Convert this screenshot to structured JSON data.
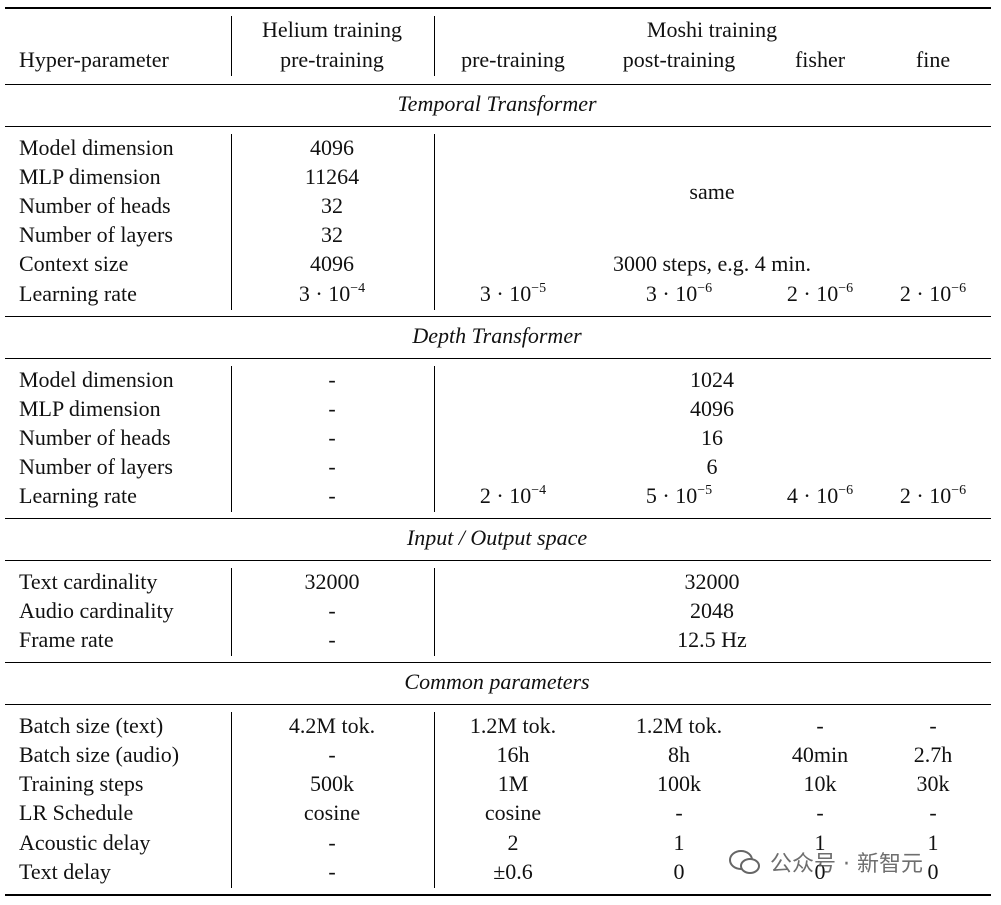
{
  "header": {
    "label": "Hyper-parameter",
    "helium_group": "Helium training",
    "moshi_group": "Moshi training",
    "sub": [
      "pre-training",
      "pre-training",
      "post-training",
      "fisher",
      "fine"
    ]
  },
  "sections": [
    {
      "title": "Temporal Transformer",
      "moshi_merged": "same",
      "rows": [
        {
          "label": "Model dimension",
          "helium": "4096"
        },
        {
          "label": "MLP dimension",
          "helium": "11264"
        },
        {
          "label": "Number of heads",
          "helium": "32"
        },
        {
          "label": "Number of layers",
          "helium": "32"
        },
        {
          "label": "Context size",
          "helium": "4096",
          "moshi": [
            "3000 steps, e.g. 4 min."
          ]
        },
        {
          "label": "Learning rate",
          "helium": {
            "base": "3 · 10",
            "exp": "−4"
          },
          "moshi": [
            {
              "base": "3 · 10",
              "exp": "−5"
            },
            {
              "base": "3 · 10",
              "exp": "−6"
            },
            {
              "base": "2 · 10",
              "exp": "−6"
            },
            {
              "base": "2 · 10",
              "exp": "−6"
            }
          ]
        }
      ]
    },
    {
      "title": "Depth Transformer",
      "rows": [
        {
          "label": "Model dimension",
          "helium": "-",
          "moshi": [
            "1024"
          ]
        },
        {
          "label": "MLP dimension",
          "helium": "-",
          "moshi": [
            "4096"
          ]
        },
        {
          "label": "Number of heads",
          "helium": "-",
          "moshi": [
            "16"
          ]
        },
        {
          "label": "Number of layers",
          "helium": "-",
          "moshi": [
            "6"
          ]
        },
        {
          "label": "Learning rate",
          "helium": "-",
          "moshi": [
            {
              "base": "2 · 10",
              "exp": "−4"
            },
            {
              "base": "5 · 10",
              "exp": "−5"
            },
            {
              "base": "4 · 10",
              "exp": "−6"
            },
            {
              "base": "2 · 10",
              "exp": "−6"
            }
          ]
        }
      ]
    },
    {
      "title": "Input / Output space",
      "rows": [
        {
          "label": "Text cardinality",
          "helium": "32000",
          "moshi": [
            "32000"
          ]
        },
        {
          "label": "Audio cardinality",
          "helium": "-",
          "moshi": [
            "2048"
          ]
        },
        {
          "label": "Frame rate",
          "helium": "-",
          "moshi": [
            "12.5 Hz"
          ]
        }
      ]
    },
    {
      "title": "Common parameters",
      "rows": [
        {
          "label": "Batch size (text)",
          "helium": "4.2M tok.",
          "moshi": [
            "1.2M tok.",
            "1.2M tok.",
            "-",
            "-"
          ]
        },
        {
          "label": "Batch size (audio)",
          "helium": "-",
          "moshi": [
            "16h",
            "8h",
            "40min",
            "2.7h"
          ]
        },
        {
          "label": "Training steps",
          "helium": "500k",
          "moshi": [
            "1M",
            "100k",
            "10k",
            "30k"
          ]
        },
        {
          "label": "LR Schedule",
          "helium": "cosine",
          "moshi": [
            "cosine",
            "-",
            "-",
            "-"
          ]
        },
        {
          "label": "Acoustic delay",
          "helium": "-",
          "moshi": [
            "2",
            "1",
            "1",
            "1"
          ]
        },
        {
          "label": "Text delay",
          "helium": "-",
          "moshi": [
            "±0.6",
            "0",
            "0",
            "0"
          ]
        }
      ]
    }
  ],
  "watermark": "公众号 · 新智元"
}
